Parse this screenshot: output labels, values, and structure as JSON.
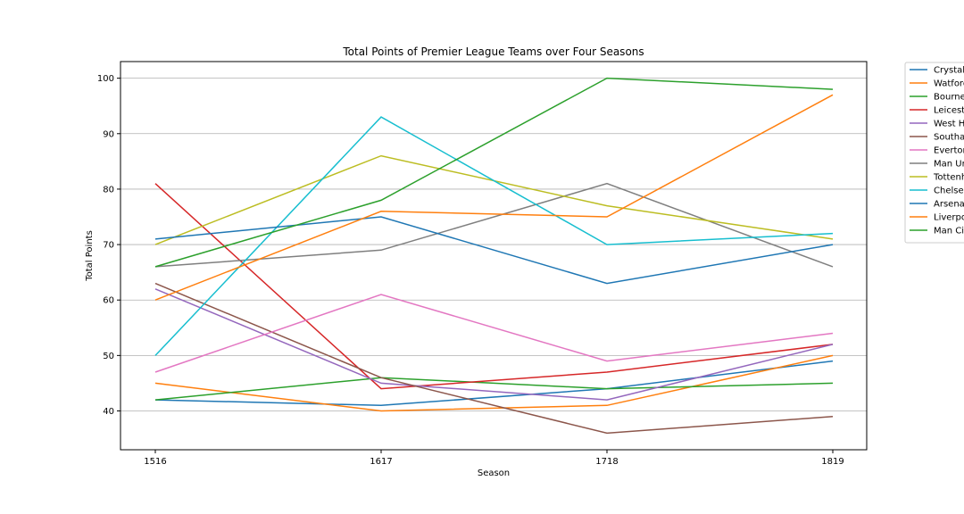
{
  "chart_data": {
    "type": "line",
    "title": "Total Points of Premier League Teams over Four Seasons",
    "xlabel": "Season",
    "ylabel": "Total Points",
    "categories": [
      "1516",
      "1617",
      "1718",
      "1819"
    ],
    "ylim": [
      33,
      103
    ],
    "yticks": [
      40,
      50,
      60,
      70,
      80,
      90,
      100
    ],
    "grid": "horizontal",
    "legend_position": "outside-right",
    "series": [
      {
        "name": "Crystal Palace",
        "color": "#1f77b4",
        "values": [
          42,
          41,
          44,
          49
        ]
      },
      {
        "name": "Watford",
        "color": "#ff7f0e",
        "values": [
          45,
          40,
          41,
          50
        ]
      },
      {
        "name": "Bournemouth",
        "color": "#2ca02c",
        "values": [
          42,
          46,
          44,
          45
        ]
      },
      {
        "name": "Leicester",
        "color": "#d62728",
        "values": [
          81,
          44,
          47,
          52
        ]
      },
      {
        "name": "West Ham",
        "color": "#9467bd",
        "values": [
          62,
          45,
          42,
          52
        ]
      },
      {
        "name": "Southampton",
        "color": "#8c564b",
        "values": [
          63,
          46,
          36,
          39
        ]
      },
      {
        "name": "Everton",
        "color": "#e377c2",
        "values": [
          47,
          61,
          49,
          54
        ]
      },
      {
        "name": "Man United",
        "color": "#7f7f7f",
        "values": [
          66,
          69,
          81,
          66
        ]
      },
      {
        "name": "Tottenham",
        "color": "#bcbd22",
        "values": [
          70,
          86,
          77,
          71
        ]
      },
      {
        "name": "Chelsea",
        "color": "#17becf",
        "values": [
          50,
          93,
          70,
          72
        ]
      },
      {
        "name": "Arsenal",
        "color": "#1f77b4",
        "values": [
          71,
          75,
          63,
          70
        ]
      },
      {
        "name": "Liverpool",
        "color": "#ff7f0e",
        "values": [
          60,
          76,
          75,
          97
        ]
      },
      {
        "name": "Man City",
        "color": "#2ca02c",
        "values": [
          66,
          78,
          100,
          98
        ]
      }
    ]
  }
}
